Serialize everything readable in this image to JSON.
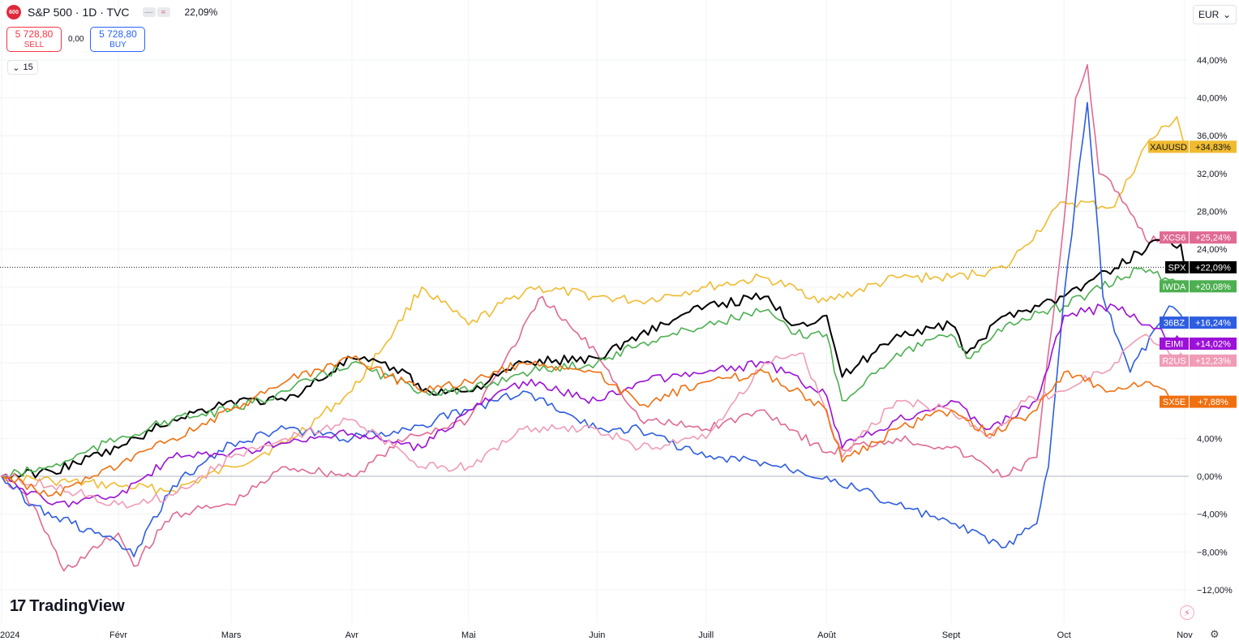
{
  "header": {
    "badge": "600",
    "title": "S&P 500 · 1D · TVC",
    "pill_a": "—",
    "pill_b": "≈",
    "change": "22,09%"
  },
  "trade": {
    "sell_price": "5 728,80",
    "sell_label": "SELL",
    "spread": "0,00",
    "buy_price": "5 728,80",
    "buy_label": "BUY"
  },
  "interval": {
    "chevron": "⌄",
    "value": "15"
  },
  "currency": {
    "value": "EUR",
    "chevron": "⌄"
  },
  "brand": {
    "mark": "17",
    "name": "TradingView"
  },
  "icons": {
    "bolt": "⚡",
    "gear": "⚙",
    "bolt_name": "lightning-icon",
    "gear_name": "settings-icon"
  },
  "chart_data": {
    "type": "line",
    "yunit": "%",
    "ylim": [
      -14,
      46
    ],
    "y_ticks": [
      44,
      40,
      36,
      32,
      28,
      24,
      20,
      16,
      12,
      8,
      4,
      0,
      -4,
      -8,
      -12
    ],
    "y_tick_labels": [
      "44,00%",
      "40,00%",
      "36,00%",
      "32,00%",
      "28,00%",
      "24,00%",
      "",
      "",
      "",
      "",
      "4,00%",
      "0,00%",
      "−4,00%",
      "−8,00%",
      "−12,00%"
    ],
    "x_range": [
      "2024-01-02",
      "2024-11-01"
    ],
    "x_ticks": [
      {
        "date": "2024-01-02",
        "label": "2024"
      },
      {
        "date": "2024-02-01",
        "label": "Févr"
      },
      {
        "date": "2024-03-01",
        "label": "Mars"
      },
      {
        "date": "2024-04-01",
        "label": "Avr"
      },
      {
        "date": "2024-05-01",
        "label": "Mai"
      },
      {
        "date": "2024-06-03",
        "label": "Juin"
      },
      {
        "date": "2024-07-01",
        "label": "Juill"
      },
      {
        "date": "2024-08-01",
        "label": "Août"
      },
      {
        "date": "2024-09-02",
        "label": "Sept"
      },
      {
        "date": "2024-10-01",
        "label": "Oct"
      },
      {
        "date": "2024-11-01",
        "label": "Nov"
      }
    ],
    "reference_value": 22.09,
    "colors": {
      "XAUUSD": "#f0bb30",
      "XCS6": "#e06a94",
      "SPX": "#000000",
      "IWDA": "#4caf50",
      "36BZ": "#2d5de0",
      "EIMI": "#9c10d8",
      "R2US": "#f09cb6",
      "SX5E": "#f07010"
    },
    "series": [
      {
        "name": "XAUUSD",
        "last": "+34,83%",
        "points": [
          [
            "2024-01-02",
            0
          ],
          [
            "2024-01-15",
            -0.5
          ],
          [
            "2024-02-01",
            -1
          ],
          [
            "2024-02-15",
            -1.5
          ],
          [
            "2024-03-01",
            1
          ],
          [
            "2024-03-15",
            3.5
          ],
          [
            "2024-04-01",
            9
          ],
          [
            "2024-04-12",
            15.5
          ],
          [
            "2024-04-19",
            20
          ],
          [
            "2024-05-01",
            16
          ],
          [
            "2024-05-17",
            20
          ],
          [
            "2024-06-03",
            19
          ],
          [
            "2024-06-14",
            18.5
          ],
          [
            "2024-07-01",
            20
          ],
          [
            "2024-07-16",
            21
          ],
          [
            "2024-08-01",
            18.5
          ],
          [
            "2024-08-19",
            21
          ],
          [
            "2024-09-02",
            21
          ],
          [
            "2024-09-16",
            22
          ],
          [
            "2024-09-20",
            24
          ],
          [
            "2024-10-01",
            29
          ],
          [
            "2024-10-14",
            28.5
          ],
          [
            "2024-10-22",
            35
          ],
          [
            "2024-10-30",
            38
          ],
          [
            "2024-11-01",
            34.83
          ]
        ]
      },
      {
        "name": "XCS6",
        "last": "+25,24%",
        "points": [
          [
            "2024-01-02",
            0
          ],
          [
            "2024-01-10",
            -3
          ],
          [
            "2024-01-18",
            -10
          ],
          [
            "2024-02-01",
            -6
          ],
          [
            "2024-02-05",
            -9.5
          ],
          [
            "2024-02-15",
            -4
          ],
          [
            "2024-03-01",
            -3
          ],
          [
            "2024-03-15",
            1
          ],
          [
            "2024-04-01",
            0
          ],
          [
            "2024-04-15",
            4
          ],
          [
            "2024-05-01",
            6
          ],
          [
            "2024-05-10",
            12
          ],
          [
            "2024-05-20",
            19
          ],
          [
            "2024-05-24",
            17
          ],
          [
            "2024-06-03",
            13
          ],
          [
            "2024-06-14",
            6
          ],
          [
            "2024-07-01",
            5
          ],
          [
            "2024-07-16",
            7
          ],
          [
            "2024-08-01",
            2.5
          ],
          [
            "2024-08-19",
            4
          ],
          [
            "2024-09-02",
            3
          ],
          [
            "2024-09-16",
            0
          ],
          [
            "2024-09-24",
            2
          ],
          [
            "2024-10-01",
            27
          ],
          [
            "2024-10-04",
            40
          ],
          [
            "2024-10-07",
            43.5
          ],
          [
            "2024-10-10",
            32
          ],
          [
            "2024-10-15",
            30
          ],
          [
            "2024-10-22",
            25
          ],
          [
            "2024-11-01",
            25.24
          ]
        ]
      },
      {
        "name": "SPX",
        "last": "+22,09%",
        "points": [
          [
            "2024-01-02",
            0
          ],
          [
            "2024-01-15",
            0.5
          ],
          [
            "2024-02-01",
            3
          ],
          [
            "2024-02-15",
            6
          ],
          [
            "2024-03-01",
            8
          ],
          [
            "2024-03-15",
            8
          ],
          [
            "2024-04-01",
            12.5
          ],
          [
            "2024-04-15",
            11
          ],
          [
            "2024-04-19",
            9
          ],
          [
            "2024-05-01",
            9
          ],
          [
            "2024-05-15",
            12
          ],
          [
            "2024-06-03",
            12.5
          ],
          [
            "2024-06-14",
            15
          ],
          [
            "2024-07-01",
            18
          ],
          [
            "2024-07-16",
            19
          ],
          [
            "2024-07-24",
            16
          ],
          [
            "2024-08-01",
            17
          ],
          [
            "2024-08-05",
            10.5
          ],
          [
            "2024-08-19",
            15
          ],
          [
            "2024-09-02",
            16
          ],
          [
            "2024-09-06",
            13
          ],
          [
            "2024-09-16",
            17
          ],
          [
            "2024-10-01",
            19
          ],
          [
            "2024-10-14",
            22
          ],
          [
            "2024-10-25",
            25
          ],
          [
            "2024-10-31",
            24.5
          ],
          [
            "2024-11-01",
            22.09
          ]
        ]
      },
      {
        "name": "IWDA",
        "last": "+20,08%",
        "points": [
          [
            "2024-01-02",
            0
          ],
          [
            "2024-01-15",
            1
          ],
          [
            "2024-02-01",
            4
          ],
          [
            "2024-02-15",
            6
          ],
          [
            "2024-03-01",
            7
          ],
          [
            "2024-03-15",
            9
          ],
          [
            "2024-04-01",
            12
          ],
          [
            "2024-04-19",
            9
          ],
          [
            "2024-05-01",
            9
          ],
          [
            "2024-05-15",
            11
          ],
          [
            "2024-06-03",
            12
          ],
          [
            "2024-06-14",
            14
          ],
          [
            "2024-07-01",
            16
          ],
          [
            "2024-07-16",
            17.5
          ],
          [
            "2024-07-24",
            15
          ],
          [
            "2024-08-01",
            15
          ],
          [
            "2024-08-05",
            8
          ],
          [
            "2024-08-19",
            13
          ],
          [
            "2024-09-02",
            15
          ],
          [
            "2024-09-06",
            12.5
          ],
          [
            "2024-09-16",
            16
          ],
          [
            "2024-10-01",
            18
          ],
          [
            "2024-10-21",
            22
          ],
          [
            "2024-11-01",
            20.08
          ]
        ]
      },
      {
        "name": "36BZ",
        "last": "+16,24%",
        "points": [
          [
            "2024-01-02",
            0
          ],
          [
            "2024-01-10",
            -3
          ],
          [
            "2024-01-20",
            -5
          ],
          [
            "2024-02-01",
            -7
          ],
          [
            "2024-02-05",
            -8.5
          ],
          [
            "2024-02-15",
            -1
          ],
          [
            "2024-03-01",
            3.5
          ],
          [
            "2024-03-15",
            5
          ],
          [
            "2024-04-01",
            4
          ],
          [
            "2024-04-15",
            5
          ],
          [
            "2024-05-01",
            7
          ],
          [
            "2024-05-15",
            9
          ],
          [
            "2024-06-03",
            5
          ],
          [
            "2024-06-14",
            5
          ],
          [
            "2024-07-01",
            2
          ],
          [
            "2024-07-16",
            1.5
          ],
          [
            "2024-08-01",
            0
          ],
          [
            "2024-08-19",
            -3
          ],
          [
            "2024-09-02",
            -5
          ],
          [
            "2024-09-16",
            -7.5
          ],
          [
            "2024-09-24",
            -5
          ],
          [
            "2024-09-27",
            1
          ],
          [
            "2024-10-01",
            19
          ],
          [
            "2024-10-07",
            39.5
          ],
          [
            "2024-10-11",
            19
          ],
          [
            "2024-10-18",
            11
          ],
          [
            "2024-10-28",
            18
          ],
          [
            "2024-11-01",
            16.24
          ]
        ]
      },
      {
        "name": "EIMI",
        "last": "+14,02%",
        "points": [
          [
            "2024-01-02",
            0
          ],
          [
            "2024-01-15",
            -3
          ],
          [
            "2024-02-01",
            -2
          ],
          [
            "2024-02-15",
            2
          ],
          [
            "2024-03-01",
            2.5
          ],
          [
            "2024-03-15",
            3.5
          ],
          [
            "2024-04-01",
            4.5
          ],
          [
            "2024-04-19",
            3
          ],
          [
            "2024-05-01",
            7
          ],
          [
            "2024-05-15",
            10
          ],
          [
            "2024-06-03",
            8
          ],
          [
            "2024-06-14",
            10
          ],
          [
            "2024-07-01",
            11
          ],
          [
            "2024-07-16",
            12
          ],
          [
            "2024-08-01",
            8.5
          ],
          [
            "2024-08-05",
            3
          ],
          [
            "2024-08-19",
            6
          ],
          [
            "2024-09-02",
            8
          ],
          [
            "2024-09-12",
            5
          ],
          [
            "2024-09-24",
            8
          ],
          [
            "2024-10-01",
            17
          ],
          [
            "2024-10-14",
            18
          ],
          [
            "2024-10-22",
            16
          ],
          [
            "2024-11-01",
            14.02
          ]
        ]
      },
      {
        "name": "R2US",
        "last": "+12,23%",
        "points": [
          [
            "2024-01-02",
            0
          ],
          [
            "2024-01-15",
            -1
          ],
          [
            "2024-02-01",
            -3
          ],
          [
            "2024-02-15",
            -2
          ],
          [
            "2024-03-01",
            2
          ],
          [
            "2024-03-15",
            4
          ],
          [
            "2024-04-01",
            6
          ],
          [
            "2024-04-19",
            1
          ],
          [
            "2024-05-01",
            1
          ],
          [
            "2024-05-15",
            5
          ],
          [
            "2024-06-03",
            5
          ],
          [
            "2024-06-14",
            3
          ],
          [
            "2024-07-01",
            4
          ],
          [
            "2024-07-16",
            12
          ],
          [
            "2024-07-26",
            13
          ],
          [
            "2024-08-05",
            2
          ],
          [
            "2024-08-19",
            8
          ],
          [
            "2024-09-02",
            7
          ],
          [
            "2024-09-12",
            4
          ],
          [
            "2024-09-20",
            8
          ],
          [
            "2024-10-01",
            9
          ],
          [
            "2024-10-14",
            12
          ],
          [
            "2024-10-22",
            15
          ],
          [
            "2024-11-01",
            12.23
          ]
        ]
      },
      {
        "name": "SX5E",
        "last": "+7,88%",
        "points": [
          [
            "2024-01-02",
            0
          ],
          [
            "2024-01-15",
            -2
          ],
          [
            "2024-02-01",
            1
          ],
          [
            "2024-02-15",
            4
          ],
          [
            "2024-03-01",
            7
          ],
          [
            "2024-03-15",
            10
          ],
          [
            "2024-04-01",
            12.5
          ],
          [
            "2024-04-19",
            9
          ],
          [
            "2024-05-01",
            10
          ],
          [
            "2024-05-15",
            12
          ],
          [
            "2024-06-03",
            11
          ],
          [
            "2024-06-14",
            7.5
          ],
          [
            "2024-07-01",
            10
          ],
          [
            "2024-07-16",
            11
          ],
          [
            "2024-08-01",
            7
          ],
          [
            "2024-08-05",
            1.5
          ],
          [
            "2024-08-19",
            5
          ],
          [
            "2024-09-02",
            7
          ],
          [
            "2024-09-12",
            4.5
          ],
          [
            "2024-09-24",
            7
          ],
          [
            "2024-10-01",
            11
          ],
          [
            "2024-10-14",
            9
          ],
          [
            "2024-10-22",
            10
          ],
          [
            "2024-11-01",
            7.88
          ]
        ]
      }
    ]
  }
}
